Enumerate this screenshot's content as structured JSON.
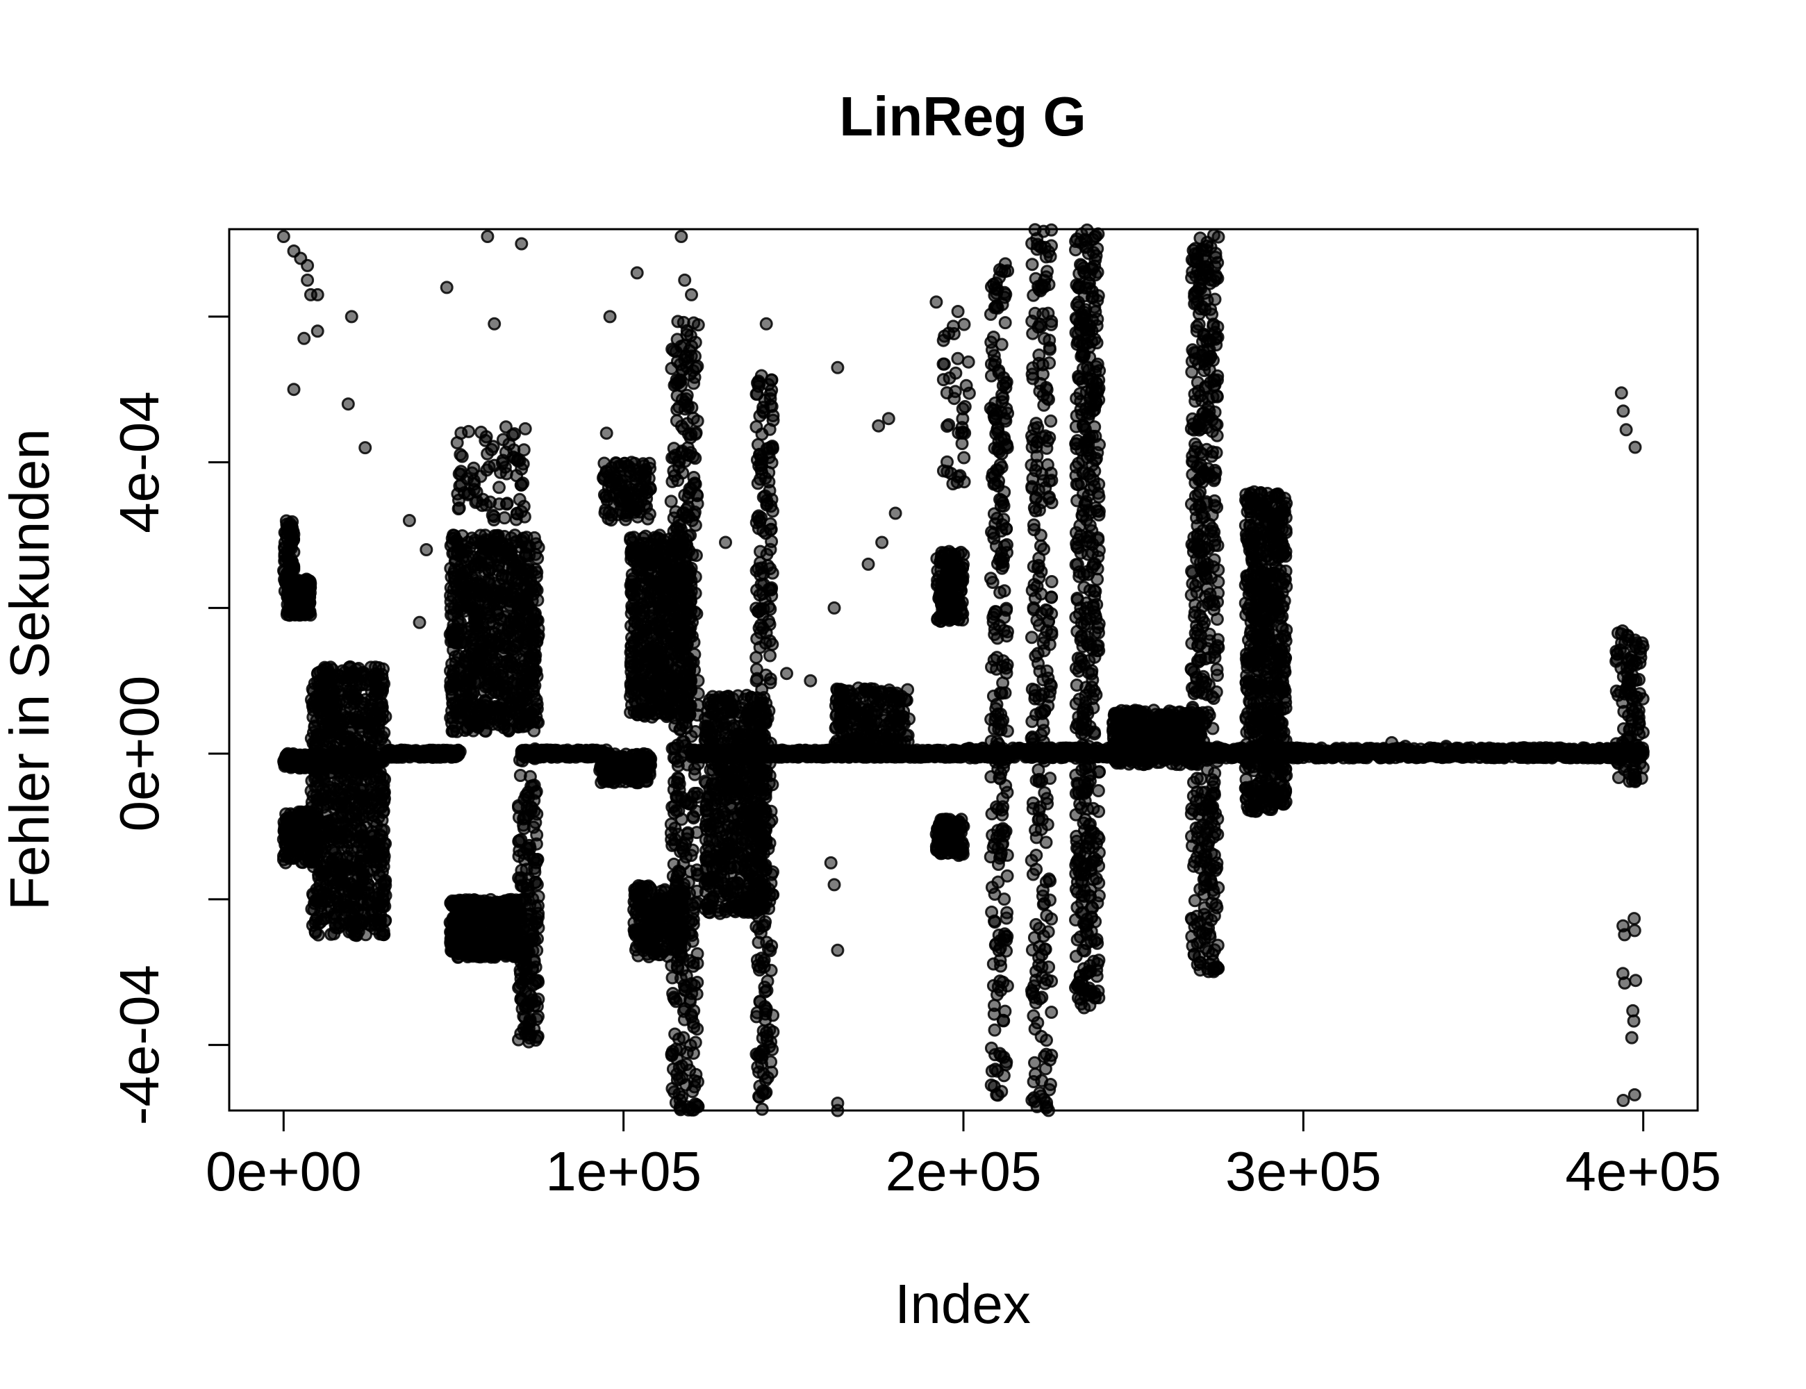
{
  "chart_data": {
    "type": "scatter",
    "title": "LinReg G",
    "xlabel": "Index",
    "ylabel": "Fehler in Sekunden",
    "xlim": [
      -16000,
      416000
    ],
    "ylim": [
      -0.00049,
      0.00072
    ],
    "x_ticks": [
      {
        "value": 0,
        "label": "0e+00"
      },
      {
        "value": 100000,
        "label": "1e+05"
      },
      {
        "value": 200000,
        "label": "2e+05"
      },
      {
        "value": 300000,
        "label": "3e+05"
      },
      {
        "value": 400000,
        "label": "4e+05"
      }
    ],
    "y_ticks": [
      {
        "value": -0.0004,
        "label": "-4e-04"
      },
      {
        "value": -0.0002,
        "label": ""
      },
      {
        "value": 0,
        "label": "0e+00"
      },
      {
        "value": 0.0002,
        "label": ""
      },
      {
        "value": 0.0004,
        "label": "4e-04"
      },
      {
        "value": 0.0006,
        "label": ""
      }
    ],
    "grid": false,
    "legend": "none",
    "point_color": "#000000",
    "point_alpha": 0.5,
    "clusters": [
      {
        "x": [
          0,
          28000
        ],
        "y": [
          -2e-05,
          0.0
        ],
        "n": 380
      },
      {
        "x": [
          30000,
          52000
        ],
        "y": [
          -5e-06,
          5e-06
        ],
        "n": 260
      },
      {
        "x": [
          0,
          3000
        ],
        "y": [
          0.00022,
          0.00032
        ],
        "n": 90
      },
      {
        "x": [
          1000,
          8000
        ],
        "y": [
          0.00019,
          0.00024
        ],
        "n": 220
      },
      {
        "x": [
          0,
          10000
        ],
        "y": [
          -0.00015,
          -8e-05
        ],
        "n": 160
      },
      {
        "x": [
          8000,
          30000
        ],
        "y": [
          -0.00025,
          0.00012
        ],
        "n": 900
      },
      {
        "x": [
          49000,
          75000
        ],
        "y": [
          3e-05,
          0.0003
        ],
        "n": 800
      },
      {
        "x": [
          49000,
          70000
        ],
        "y": [
          -0.00028,
          -0.0002
        ],
        "n": 500
      },
      {
        "x": [
          51000,
          72000
        ],
        "y": [
          0.00032,
          0.00045
        ],
        "n": 80
      },
      {
        "x": [
          69000,
          75000
        ],
        "y": [
          -0.0004,
          1e-05
        ],
        "n": 200
      },
      {
        "x": [
          70000,
          95000
        ],
        "y": [
          -5e-06,
          5e-06
        ],
        "n": 250
      },
      {
        "x": [
          93000,
          108000
        ],
        "y": [
          -4e-05,
          0.0
        ],
        "n": 160
      },
      {
        "x": [
          94000,
          108000
        ],
        "y": [
          0.00032,
          0.0004
        ],
        "n": 120
      },
      {
        "x": [
          102000,
          120000
        ],
        "y": [
          5e-05,
          0.0003
        ],
        "n": 600
      },
      {
        "x": [
          103000,
          118000
        ],
        "y": [
          -0.00028,
          -0.00018
        ],
        "n": 260
      },
      {
        "x": [
          114000,
          122000
        ],
        "y": [
          -0.00049,
          0.0006
        ],
        "n": 420
      },
      {
        "x": [
          120000,
          200000
        ],
        "y": [
          -5e-06,
          5e-06
        ],
        "n": 700
      },
      {
        "x": [
          124000,
          142000
        ],
        "y": [
          -0.00022,
          8e-05
        ],
        "n": 650
      },
      {
        "x": [
          139000,
          144000
        ],
        "y": [
          -0.00049,
          0.00052
        ],
        "n": 260
      },
      {
        "x": [
          162000,
          184000
        ],
        "y": [
          0.0,
          9e-05
        ],
        "n": 240
      },
      {
        "x": [
          192000,
          200000
        ],
        "y": [
          0.00018,
          0.00028
        ],
        "n": 160
      },
      {
        "x": [
          192000,
          200000
        ],
        "y": [
          -0.00014,
          -9e-05
        ],
        "n": 120
      },
      {
        "x": [
          194000,
          202000
        ],
        "y": [
          0.00037,
          0.00061
        ],
        "n": 40
      },
      {
        "x": [
          200000,
          400000
        ],
        "y": [
          -6e-06,
          8e-06
        ],
        "n": 1300
      },
      {
        "x": [
          208000,
          213000
        ],
        "y": [
          -0.00049,
          0.00068
        ],
        "n": 260
      },
      {
        "x": [
          220000,
          226000
        ],
        "y": [
          -0.00049,
          0.00072
        ],
        "n": 260
      },
      {
        "x": [
          233000,
          240000
        ],
        "y": [
          -0.00035,
          0.00072
        ],
        "n": 500
      },
      {
        "x": [
          244000,
          270000
        ],
        "y": [
          -1.5e-05,
          6e-05
        ],
        "n": 500
      },
      {
        "x": [
          267000,
          275000
        ],
        "y": [
          -0.0003,
          0.00072
        ],
        "n": 500
      },
      {
        "x": [
          283000,
          295000
        ],
        "y": [
          -8e-05,
          0.00036
        ],
        "n": 700
      },
      {
        "x": [
          392000,
          400000
        ],
        "y": [
          -4e-05,
          0.00017
        ],
        "n": 120
      },
      {
        "x": [
          394000,
          398000
        ],
        "y": [
          -0.00049,
          -0.00018
        ],
        "n": 12
      },
      {
        "x": [
          393000,
          398000
        ],
        "y": [
          0.0004,
          0.00056
        ],
        "n": 4
      }
    ],
    "points": [
      [
        0,
        0.00071
      ],
      [
        5000,
        0.00068
      ],
      [
        7000,
        0.00067
      ],
      [
        8000,
        0.00063
      ],
      [
        10000,
        0.00063
      ],
      [
        6000,
        0.00057
      ],
      [
        20000,
        0.0006
      ],
      [
        3000,
        0.0005
      ],
      [
        19000,
        0.00048
      ],
      [
        24000,
        0.00042
      ],
      [
        37000,
        0.00032
      ],
      [
        40000,
        0.00018
      ],
      [
        42000,
        0.00028
      ],
      [
        48000,
        0.00064
      ],
      [
        60000,
        0.00071
      ],
      [
        62000,
        0.00059
      ],
      [
        70000,
        0.0007
      ],
      [
        96000,
        0.0006
      ],
      [
        104000,
        0.00066
      ],
      [
        117000,
        0.00071
      ],
      [
        120000,
        0.00063
      ],
      [
        118000,
        0.00065
      ],
      [
        95000,
        0.00044
      ],
      [
        130000,
        0.00029
      ],
      [
        142000,
        0.00059
      ],
      [
        148000,
        0.00011
      ],
      [
        155000,
        0.0001
      ],
      [
        163000,
        0.00053
      ],
      [
        162000,
        0.0002
      ],
      [
        161000,
        -0.00015
      ],
      [
        162000,
        -0.00018
      ],
      [
        163000,
        -0.00027
      ],
      [
        163000,
        -0.00048
      ],
      [
        163000,
        -0.00049
      ],
      [
        175000,
        0.00045
      ],
      [
        178000,
        0.00046
      ],
      [
        180000,
        0.00033
      ],
      [
        176000,
        0.00029
      ],
      [
        172000,
        0.00026
      ],
      [
        192000,
        0.00062
      ],
      [
        280000,
        0.0
      ],
      [
        330000,
        1e-05
      ],
      [
        326000,
        1.5e-05
      ],
      [
        342000,
        1e-05
      ],
      [
        25000,
        -0.00018
      ],
      [
        10000,
        0.00058
      ],
      [
        3000,
        0.00069
      ],
      [
        7000,
        0.00065
      ]
    ]
  }
}
